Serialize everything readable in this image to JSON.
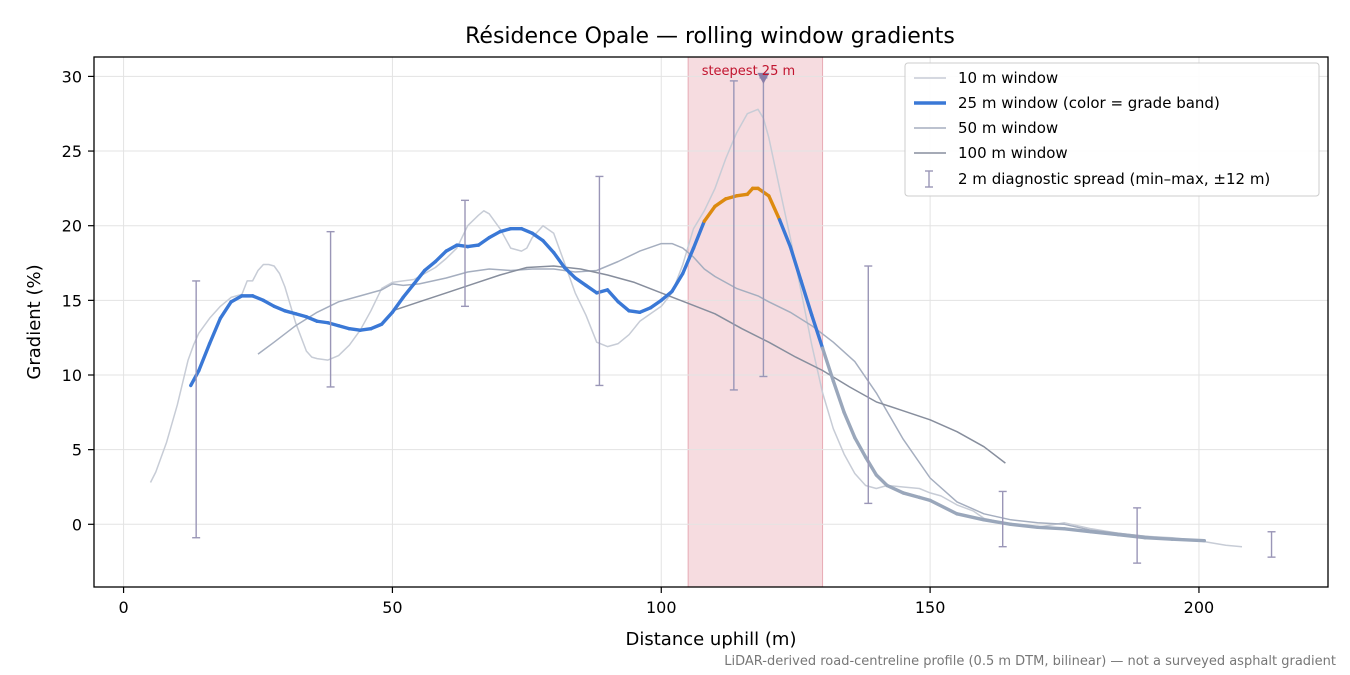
{
  "chart_data": {
    "type": "line",
    "title": "Résidence Opale — rolling window gradients",
    "xlabel": "Distance uphill (m)",
    "ylabel": "Gradient (%)",
    "xlim": [
      -5.5,
      224
    ],
    "ylim": [
      -4.2,
      31.3
    ],
    "xticks": [
      0,
      50,
      100,
      150,
      200
    ],
    "yticks": [
      0,
      5,
      10,
      15,
      20,
      25,
      30
    ],
    "grid": true,
    "legend_position": "top-right",
    "footnote": "LiDAR-derived road-centreline profile (0.5 m DTM, bilinear) — not a surveyed asphalt gradient",
    "highlight_band": {
      "x_start": 105,
      "x_end": 130,
      "color": "#f3d0d5"
    },
    "annotation": {
      "text": "steepest 25 m",
      "x": 119,
      "y": 29.9
    },
    "colors": {
      "blue": "#3a78d6",
      "orange": "#dd8a10",
      "steep_threshold": 20
    },
    "series": [
      {
        "name": "10 m window",
        "color": "#c7ccd6",
        "x": [
          5,
          6,
          8,
          10,
          12,
          13,
          14,
          16,
          18,
          20,
          22,
          23,
          24,
          25,
          26,
          27,
          28,
          29,
          30,
          32,
          34,
          35,
          36,
          38,
          40,
          42,
          44,
          46,
          48,
          50,
          52,
          54,
          56,
          58,
          60,
          62,
          64,
          66,
          67,
          68,
          70,
          72,
          74,
          75,
          76,
          78,
          80,
          82,
          84,
          86,
          88,
          90,
          92,
          94,
          96,
          98,
          100,
          102,
          104,
          106,
          108,
          110,
          112,
          114,
          116,
          118,
          119,
          120,
          122,
          124,
          126,
          128,
          130,
          132,
          134,
          136,
          138,
          140,
          142,
          145,
          148,
          150,
          152,
          155,
          158,
          160,
          165,
          170,
          175,
          180,
          185,
          190,
          195,
          200,
          205,
          208
        ],
        "values": [
          2.8,
          3.5,
          5.5,
          8,
          11,
          12,
          12.8,
          13.8,
          14.6,
          15.2,
          15.4,
          16.3,
          16.3,
          17,
          17.4,
          17.4,
          17.3,
          16.8,
          15.9,
          13.5,
          11.6,
          11.2,
          11.1,
          11.0,
          11.3,
          12,
          13,
          14.3,
          15.8,
          16.2,
          16.3,
          16.4,
          16.8,
          17.2,
          17.8,
          18.5,
          20,
          20.7,
          21,
          20.8,
          19.8,
          18.5,
          18.3,
          18.5,
          19.2,
          20.0,
          19.5,
          17.5,
          15.5,
          14,
          12.2,
          11.9,
          12.1,
          12.7,
          13.6,
          14.1,
          14.6,
          15.5,
          17.4,
          19.8,
          21,
          22.5,
          24.5,
          26.2,
          27.5,
          27.8,
          27.2,
          25.9,
          22.5,
          19.2,
          15.6,
          12,
          8.8,
          6.4,
          4.7,
          3.4,
          2.6,
          2.4,
          2.6,
          2.5,
          2.4,
          2.1,
          1.9,
          1.3,
          0.9,
          0.4,
          0.0,
          -0.2,
          0.1,
          -0.3,
          -0.6,
          -0.8,
          -0.9,
          -1.1,
          -1.4,
          -1.5
        ]
      },
      {
        "name": "25 m window (color = grade band)",
        "color": "#3a78d6",
        "x": [
          12.5,
          14,
          16,
          18,
          20,
          22,
          24,
          26,
          28,
          30,
          32,
          34,
          36,
          38,
          40,
          42,
          44,
          46,
          48,
          50,
          52,
          54,
          56,
          58,
          60,
          62,
          64,
          66,
          68,
          70,
          72,
          74,
          76,
          78,
          80,
          82,
          84,
          86,
          88,
          90,
          92,
          94,
          96,
          98,
          100,
          102,
          104,
          106,
          108,
          110,
          112,
          114,
          116,
          117,
          118,
          120,
          122,
          124,
          126,
          128,
          130,
          132,
          134,
          136,
          138,
          140,
          142,
          145,
          148,
          150,
          155,
          160,
          165,
          170,
          175,
          180,
          185,
          190,
          195,
          201
        ],
        "values": [
          9.3,
          10.3,
          12.1,
          13.8,
          14.9,
          15.3,
          15.3,
          15.0,
          14.6,
          14.3,
          14.1,
          13.9,
          13.6,
          13.5,
          13.3,
          13.1,
          13.0,
          13.1,
          13.4,
          14.2,
          15.2,
          16.1,
          17.0,
          17.6,
          18.3,
          18.7,
          18.6,
          18.7,
          19.2,
          19.6,
          19.8,
          19.8,
          19.5,
          19.0,
          18.2,
          17.2,
          16.5,
          16.0,
          15.5,
          15.7,
          14.9,
          14.3,
          14.2,
          14.5,
          15.0,
          15.6,
          16.8,
          18.5,
          20.3,
          21.3,
          21.8,
          22.0,
          22.1,
          22.5,
          22.5,
          22.0,
          20.4,
          18.6,
          16.3,
          14.0,
          11.8,
          9.6,
          7.5,
          5.8,
          4.5,
          3.3,
          2.6,
          2.1,
          1.8,
          1.6,
          0.7,
          0.3,
          0.0,
          -0.2,
          -0.3,
          -0.5,
          -0.7,
          -0.9,
          -1.0,
          -1.1
        ]
      },
      {
        "name": "50 m window",
        "color": "#a5aebf",
        "x": [
          25,
          28,
          32,
          36,
          40,
          44,
          48,
          50,
          52,
          55,
          60,
          64,
          68,
          72,
          76,
          80,
          84,
          88,
          92,
          96,
          100,
          102,
          104,
          106,
          108,
          110,
          114,
          118,
          120,
          124,
          128,
          132,
          136,
          140,
          145,
          150,
          155,
          160,
          165,
          170,
          175,
          180,
          185,
          190,
          195,
          200
        ],
        "values": [
          11.4,
          12.2,
          13.3,
          14.2,
          14.9,
          15.3,
          15.7,
          16.1,
          16.0,
          16.1,
          16.5,
          16.9,
          17.1,
          17.0,
          17.1,
          17.1,
          16.9,
          17.0,
          17.6,
          18.3,
          18.8,
          18.8,
          18.5,
          17.9,
          17.1,
          16.6,
          15.8,
          15.3,
          14.9,
          14.2,
          13.3,
          12.2,
          10.9,
          8.8,
          5.7,
          3.1,
          1.5,
          0.7,
          0.3,
          0.1,
          0.0,
          -0.4,
          -0.6,
          -0.8,
          -1.0,
          -1.1
        ]
      },
      {
        "name": "100 m window",
        "color": "#878e9d",
        "x": [
          50,
          55,
          60,
          65,
          70,
          75,
          80,
          85,
          90,
          95,
          100,
          105,
          110,
          115,
          120,
          125,
          130,
          135,
          140,
          145,
          150,
          155,
          160,
          164
        ],
        "values": [
          14.3,
          14.9,
          15.5,
          16.1,
          16.7,
          17.2,
          17.3,
          17.1,
          16.7,
          16.2,
          15.5,
          14.8,
          14.1,
          13.1,
          12.2,
          11.2,
          10.3,
          9.2,
          8.2,
          7.6,
          7.0,
          6.2,
          5.2,
          4.1
        ]
      }
    ],
    "error_bars": {
      "name": "2 m diagnostic spread (min–max, ±12 m)",
      "color": "#9a96b7",
      "points": [
        {
          "x": 13.5,
          "low": -0.9,
          "high": 16.3
        },
        {
          "x": 38.5,
          "low": 9.2,
          "high": 19.6
        },
        {
          "x": 63.5,
          "low": 14.6,
          "high": 21.7
        },
        {
          "x": 88.5,
          "low": 9.3,
          "high": 23.3
        },
        {
          "x": 113.5,
          "low": 9.0,
          "high": 29.7
        },
        {
          "x": 119,
          "low": 9.9,
          "high": 29.9
        },
        {
          "x": 138.5,
          "low": 1.4,
          "high": 17.3
        },
        {
          "x": 163.5,
          "low": -1.5,
          "high": 2.2
        },
        {
          "x": 188.5,
          "low": -2.6,
          "high": 1.1
        },
        {
          "x": 213.5,
          "low": -2.2,
          "high": -0.5
        }
      ]
    }
  }
}
